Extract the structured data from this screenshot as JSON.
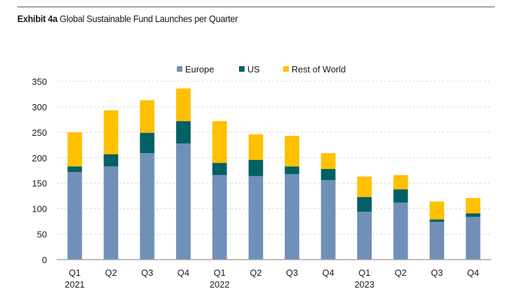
{
  "header": {
    "exhibit_label": "Exhibit 4a",
    "title_text": "Global Sustainable Fund Launches per Quarter"
  },
  "chart_data": {
    "type": "bar",
    "stacked": true,
    "title": "Exhibit 4a Global Sustainable Fund Launches per Quarter",
    "xlabel": "",
    "ylabel": "",
    "ylim": [
      0,
      350
    ],
    "yticks": [
      0,
      50,
      100,
      150,
      200,
      250,
      300,
      350
    ],
    "grid": true,
    "legend_position": "top-center",
    "categories": [
      "Q1 2021",
      "Q2 2021",
      "Q3 2021",
      "Q4 2021",
      "Q1 2022",
      "Q2 2022",
      "Q3 2022",
      "Q4 2022",
      "Q1 2023",
      "Q2 2023",
      "Q3 2023",
      "Q4 2023"
    ],
    "category_labels": [
      {
        "quarter": "Q1",
        "year": "2021"
      },
      {
        "quarter": "Q2",
        "year": ""
      },
      {
        "quarter": "Q3",
        "year": ""
      },
      {
        "quarter": "Q4",
        "year": ""
      },
      {
        "quarter": "Q1",
        "year": "2022"
      },
      {
        "quarter": "Q2",
        "year": ""
      },
      {
        "quarter": "Q3",
        "year": ""
      },
      {
        "quarter": "Q4",
        "year": ""
      },
      {
        "quarter": "Q1",
        "year": "2023"
      },
      {
        "quarter": "Q2",
        "year": ""
      },
      {
        "quarter": "Q3",
        "year": ""
      },
      {
        "quarter": "Q4",
        "year": ""
      }
    ],
    "series": [
      {
        "name": "Europe",
        "color": "#7090b8",
        "values": [
          172,
          183,
          209,
          228,
          166,
          164,
          168,
          156,
          94,
          112,
          74,
          84
        ]
      },
      {
        "name": "US",
        "color": "#006064",
        "values": [
          11,
          24,
          40,
          44,
          24,
          32,
          15,
          22,
          29,
          26,
          5,
          7
        ]
      },
      {
        "name": "Rest of World",
        "color": "#ffc000",
        "values": [
          67,
          86,
          64,
          64,
          82,
          50,
          60,
          31,
          40,
          28,
          35,
          30
        ]
      }
    ]
  },
  "colors": {
    "axis": "#a6a6a6",
    "grid": "#d9d9d9",
    "text": "#1a1a1a"
  }
}
